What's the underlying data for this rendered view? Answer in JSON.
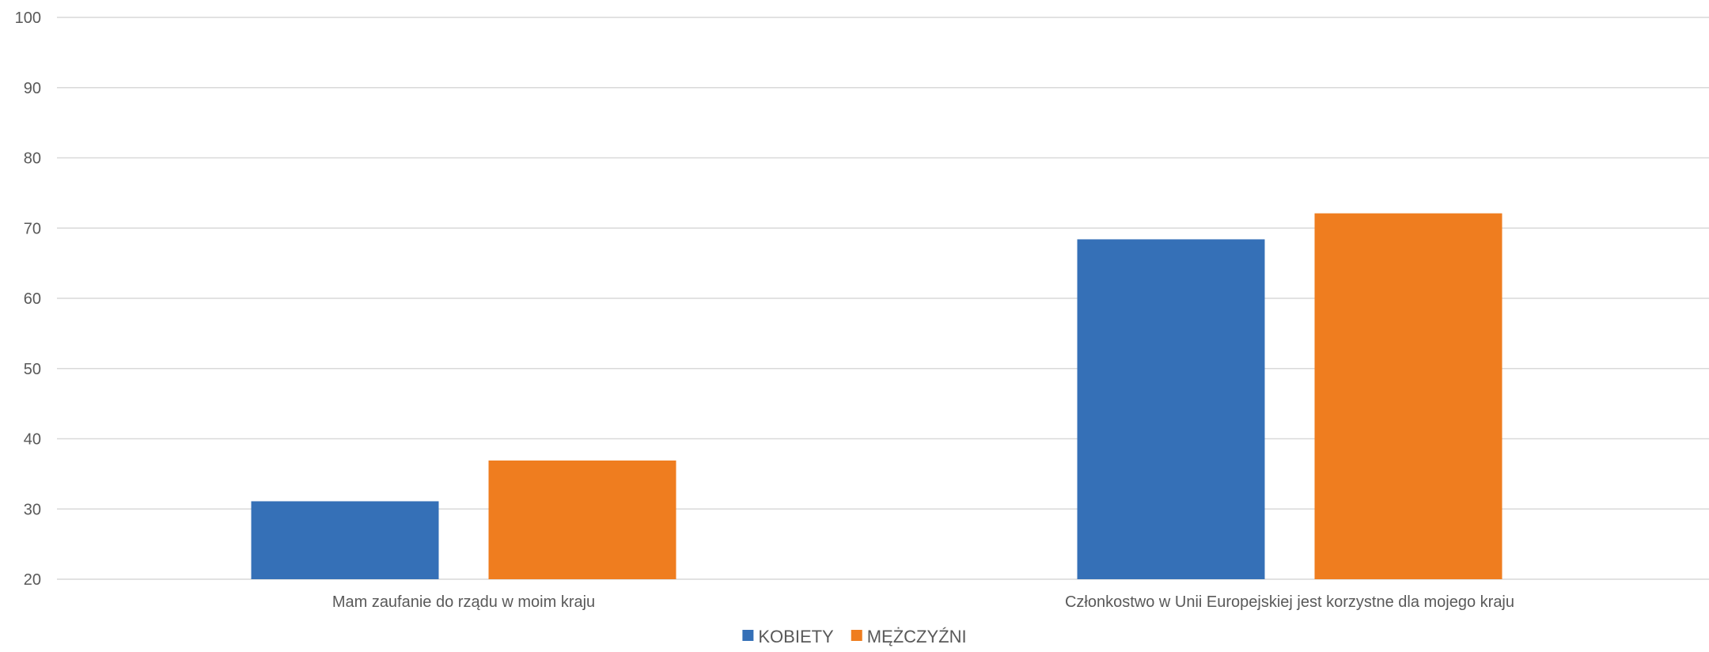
{
  "chart_data": {
    "type": "bar",
    "title": "",
    "xlabel": "",
    "ylabel": "",
    "ylim": [
      20,
      100
    ],
    "yticks": [
      20,
      30,
      40,
      50,
      60,
      70,
      80,
      90,
      100
    ],
    "grid": true,
    "legend_position": "bottom",
    "categories": [
      "Mam zaufanie do rządu w moim kraju",
      "Członkostwo w Unii Europejskiej jest korzystne dla mojego kraju"
    ],
    "series": [
      {
        "name": "KOBIETY",
        "color": "#3570b7",
        "values": [
          31.1,
          68.4
        ]
      },
      {
        "name": "MĘŻCZYŹNI",
        "color": "#ef7d1f",
        "values": [
          36.9,
          72.1
        ]
      }
    ]
  }
}
